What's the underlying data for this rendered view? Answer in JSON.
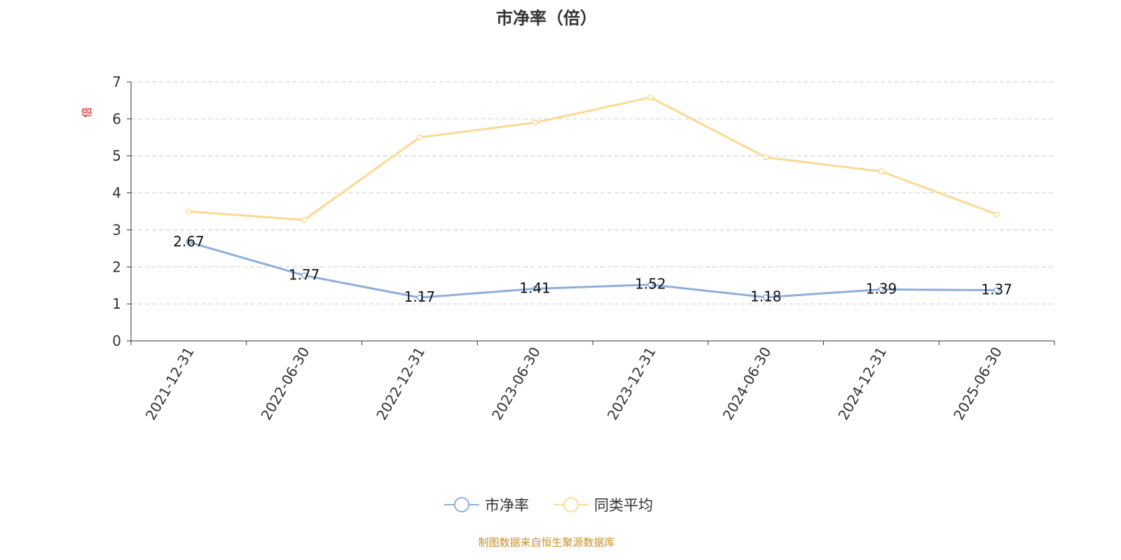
{
  "chart_data": {
    "type": "line",
    "title": "市净率（倍）",
    "ylabel": "倍",
    "xlabel": "",
    "ylim": [
      0,
      7
    ],
    "yticks": [
      0,
      1,
      2,
      3,
      4,
      5,
      6,
      7
    ],
    "grid": true,
    "legend_position": "bottom",
    "categories": [
      "2021-12-31",
      "2022-06-30",
      "2022-12-31",
      "2023-06-30",
      "2023-12-31",
      "2024-06-30",
      "2024-12-31",
      "2025-06-30"
    ],
    "series": [
      {
        "name": "市净率",
        "color": "#8eaedb",
        "values": [
          2.67,
          1.77,
          1.17,
          1.41,
          1.52,
          1.18,
          1.39,
          1.37
        ],
        "show_labels": true
      },
      {
        "name": "同类平均",
        "color": "#fcd993",
        "values": [
          3.5,
          3.27,
          5.5,
          5.9,
          6.58,
          4.96,
          4.58,
          3.42
        ],
        "show_labels": false
      }
    ]
  },
  "footer": "制图数据来自恒生聚源数据库"
}
